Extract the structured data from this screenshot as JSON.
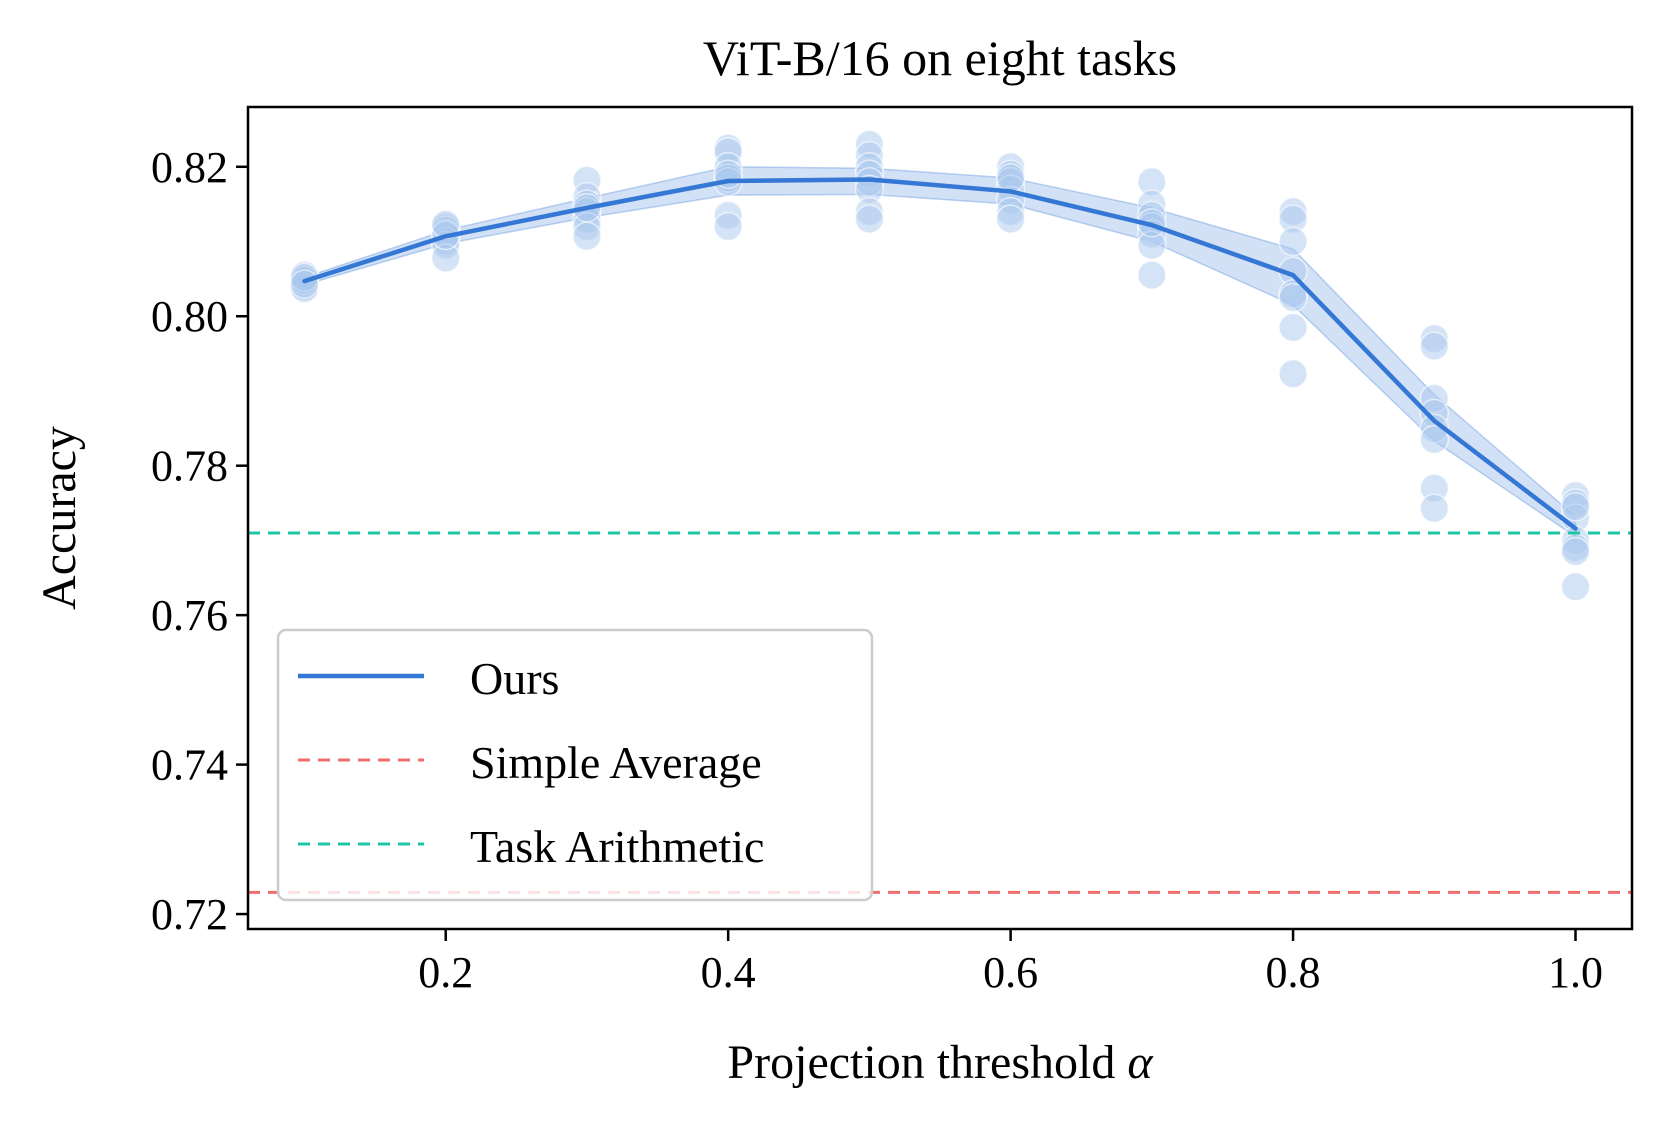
{
  "chart_data": {
    "type": "line",
    "title": "ViT-B/16 on eight tasks",
    "xlabel": "Projection threshold",
    "xlabel_symbol": "α",
    "ylabel": "Accuracy",
    "xlim": [
      0.06,
      1.04
    ],
    "ylim": [
      0.718,
      0.828
    ],
    "xticks": [
      0.2,
      0.4,
      0.6,
      0.8,
      1.0
    ],
    "xtick_labels": [
      "0.2",
      "0.4",
      "0.6",
      "0.8",
      "1.0"
    ],
    "yticks": [
      0.72,
      0.74,
      0.76,
      0.78,
      0.8,
      0.82
    ],
    "ytick_labels": [
      "0.72",
      "0.74",
      "0.76",
      "0.78",
      "0.80",
      "0.82"
    ],
    "legend_position": "lower-left",
    "series": [
      {
        "name": "Ours",
        "style": "solid",
        "color": "#3477d4",
        "x": [
          0.1,
          0.2,
          0.3,
          0.4,
          0.5,
          0.6,
          0.7,
          0.8,
          0.9,
          1.0
        ],
        "y": [
          0.8047,
          0.8107,
          0.8145,
          0.8181,
          0.8183,
          0.8167,
          0.8122,
          0.8055,
          0.786,
          0.7716
        ],
        "band_lower": [
          0.8042,
          0.8097,
          0.8132,
          0.8162,
          0.8163,
          0.815,
          0.81,
          0.8015,
          0.7833,
          0.7705
        ],
        "band_upper": [
          0.8052,
          0.8115,
          0.8158,
          0.82,
          0.8198,
          0.8185,
          0.8145,
          0.809,
          0.7895,
          0.7732
        ]
      },
      {
        "name": "Simple Average",
        "style": "dashed",
        "color": "#f07070",
        "y_constant": 0.7229
      },
      {
        "name": "Task Arithmetic",
        "style": "dashed",
        "color": "#1dc7a5",
        "y_constant": 0.771
      }
    ],
    "scatter": {
      "color": "#a9c8ee",
      "points": [
        {
          "x": 0.1,
          "y": [
            0.805,
            0.8045,
            0.804,
            0.8055,
            0.8037,
            0.8048,
            0.8052,
            0.8043
          ]
        },
        {
          "x": 0.2,
          "y": [
            0.812,
            0.8115,
            0.811,
            0.81,
            0.8095,
            0.8078,
            0.8108,
            0.8123
          ]
        },
        {
          "x": 0.3,
          "y": [
            0.8182,
            0.816,
            0.815,
            0.814,
            0.813,
            0.812,
            0.8107,
            0.8145
          ]
        },
        {
          "x": 0.4,
          "y": [
            0.8225,
            0.822,
            0.82,
            0.8185,
            0.818,
            0.8135,
            0.812,
            0.819
          ]
        },
        {
          "x": 0.5,
          "y": [
            0.823,
            0.8215,
            0.82,
            0.819,
            0.818,
            0.817,
            0.814,
            0.813
          ]
        },
        {
          "x": 0.6,
          "y": [
            0.82,
            0.819,
            0.818,
            0.817,
            0.8155,
            0.814,
            0.813,
            0.8185
          ]
        },
        {
          "x": 0.7,
          "y": [
            0.818,
            0.815,
            0.8135,
            0.812,
            0.811,
            0.8095,
            0.8055,
            0.8125
          ]
        },
        {
          "x": 0.8,
          "y": [
            0.814,
            0.813,
            0.81,
            0.806,
            0.803,
            0.8025,
            0.7985,
            0.7923
          ]
        },
        {
          "x": 0.9,
          "y": [
            0.797,
            0.796,
            0.789,
            0.787,
            0.785,
            0.7835,
            0.777,
            0.7743
          ]
        },
        {
          "x": 1.0,
          "y": [
            0.776,
            0.775,
            0.773,
            0.77,
            0.769,
            0.7685,
            0.7638,
            0.7745
          ]
        }
      ]
    }
  }
}
